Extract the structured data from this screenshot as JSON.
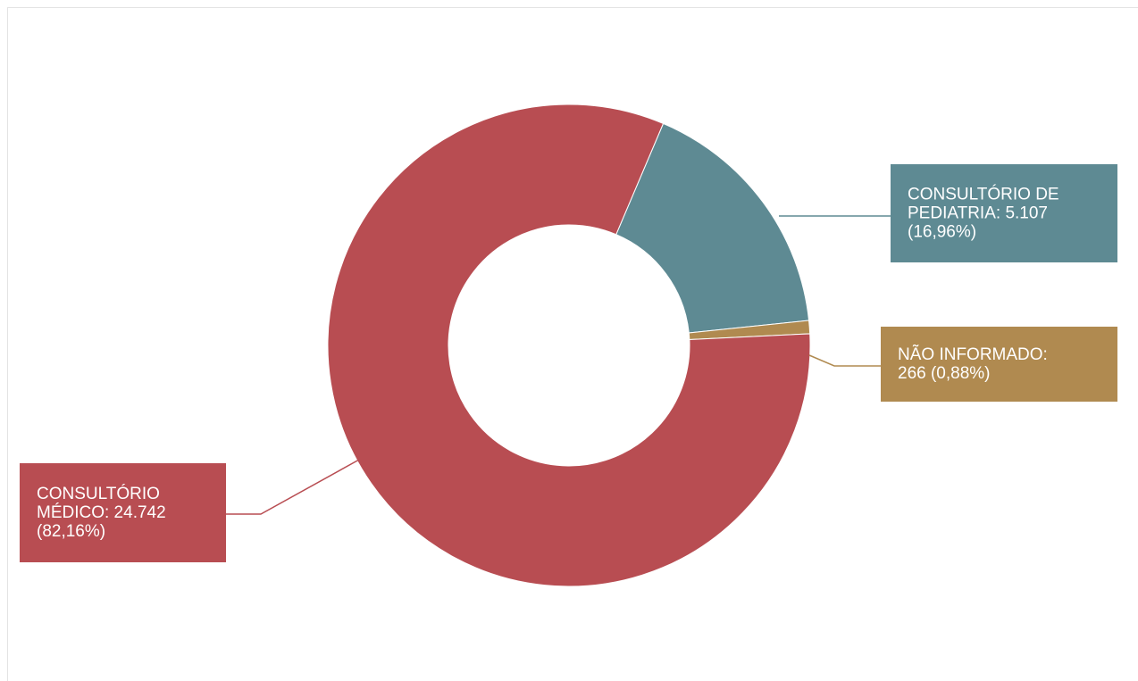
{
  "chart_data": {
    "type": "pie",
    "variant": "donut",
    "title": "",
    "slices": [
      {
        "name": "CONSULTÓRIO DE PEDIATRIA",
        "value": 5107,
        "percent": 16.96,
        "color": "#5e8a93",
        "label_lines": [
          "CONSULTÓRIO DE",
          "PEDIATRIA: 5.107",
          "(16,96%)"
        ]
      },
      {
        "name": "NÃO INFORMADO",
        "value": 266,
        "percent": 0.88,
        "color": "#b08a50",
        "label_lines": [
          "NÃO INFORMADO:",
          "266 (0,88%)"
        ]
      },
      {
        "name": "CONSULTÓRIO MÉDICO",
        "value": 24742,
        "percent": 82.16,
        "color": "#b84d52",
        "label_lines": [
          "CONSULTÓRIO",
          "MÉDICO: 24.742",
          "(82,16%)"
        ]
      }
    ]
  }
}
